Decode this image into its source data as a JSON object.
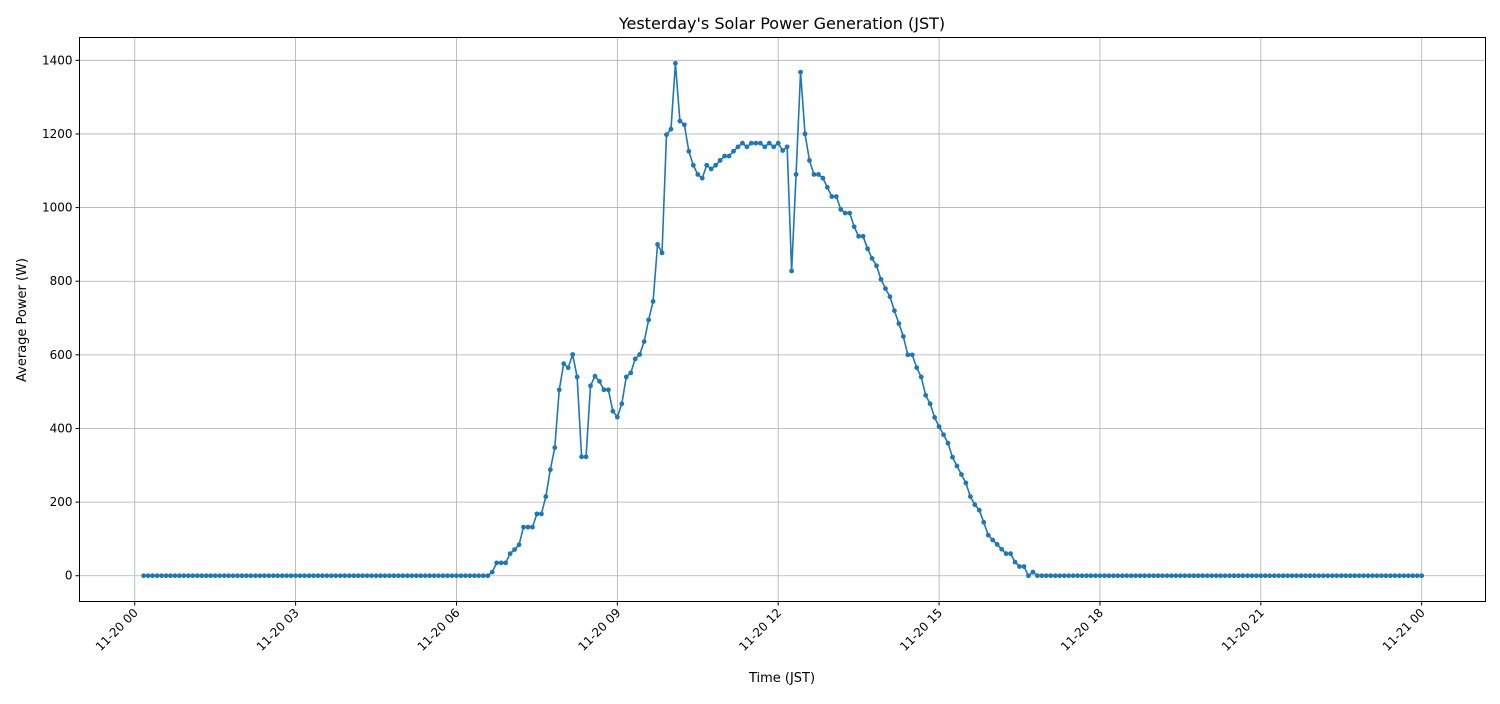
{
  "chart_data": {
    "type": "line",
    "title": "Yesterday's Solar Power Generation (JST)",
    "xlabel": "Time (JST)",
    "ylabel": "Average Power (W)",
    "x_start": "11-20 00:10",
    "x_interval_minutes": 5,
    "x_ticks": [
      "11-20 00",
      "11-20 03",
      "11-20 06",
      "11-20 09",
      "11-20 12",
      "11-20 15",
      "11-20 18",
      "11-20 21",
      "11-21 00"
    ],
    "y_ticks": [
      0,
      200,
      400,
      600,
      800,
      1000,
      1200,
      1400
    ],
    "xlim_hours": [
      -1.03,
      25.19
    ],
    "ylim": [
      -70,
      1462
    ],
    "grid": true,
    "marker": "dot",
    "color": "#1f77b4",
    "values": [
      0,
      0,
      0,
      0,
      0,
      0,
      0,
      0,
      0,
      0,
      0,
      0,
      0,
      0,
      0,
      0,
      0,
      0,
      0,
      0,
      0,
      0,
      0,
      0,
      0,
      0,
      0,
      0,
      0,
      0,
      0,
      0,
      0,
      0,
      0,
      0,
      0,
      0,
      0,
      0,
      0,
      0,
      0,
      0,
      0,
      0,
      0,
      0,
      0,
      0,
      0,
      0,
      0,
      0,
      0,
      0,
      0,
      0,
      0,
      0,
      0,
      0,
      0,
      0,
      0,
      0,
      0,
      0,
      0,
      0,
      0,
      0,
      0,
      0,
      0,
      0,
      0,
      0,
      10,
      35,
      35,
      35,
      60,
      71,
      84,
      132,
      132,
      132,
      168,
      168,
      215,
      288,
      348,
      505,
      576,
      565,
      601,
      540,
      323,
      323,
      516,
      542,
      528,
      505,
      505,
      447,
      431,
      467,
      540,
      551,
      589,
      601,
      636,
      695,
      745,
      900,
      877,
      1198,
      1213,
      1392,
      1235,
      1225,
      1153,
      1115,
      1090,
      1080,
      1115,
      1105,
      1115,
      1128,
      1140,
      1140,
      1153,
      1165,
      1175,
      1165,
      1175,
      1175,
      1175,
      1165,
      1175,
      1165,
      1175,
      1155,
      1165,
      828,
      1090,
      1368,
      1200,
      1128,
      1090,
      1090,
      1080,
      1055,
      1030,
      1030,
      995,
      985,
      985,
      948,
      922,
      922,
      888,
      862,
      842,
      805,
      780,
      758,
      720,
      685,
      650,
      600,
      600,
      565,
      540,
      490,
      467,
      430,
      405,
      383,
      360,
      322,
      298,
      275,
      252,
      215,
      193,
      178,
      145,
      110,
      97,
      85,
      72,
      60,
      60,
      37,
      25,
      25,
      0,
      10,
      0,
      0,
      0,
      0,
      0,
      0,
      0,
      0,
      0,
      0,
      0,
      0,
      0,
      0,
      0,
      0,
      0,
      0,
      0,
      0,
      0,
      0,
      0,
      0,
      0,
      0,
      0,
      0,
      0,
      0,
      0,
      0,
      0,
      0,
      0,
      0,
      0,
      0,
      0,
      0,
      0,
      0,
      0,
      0,
      0,
      0,
      0,
      0,
      0,
      0,
      0,
      0,
      0,
      0,
      0,
      0,
      0,
      0,
      0,
      0,
      0,
      0,
      0,
      0,
      0,
      0,
      0,
      0,
      0,
      0,
      0,
      0,
      0,
      0,
      0,
      0,
      0,
      0,
      0,
      0,
      0,
      0,
      0,
      0,
      0,
      0,
      0
    ]
  }
}
